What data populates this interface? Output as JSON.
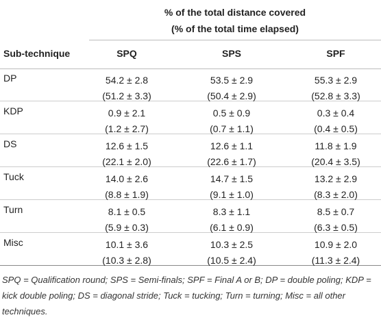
{
  "table": {
    "header": {
      "group": [
        "% of the total distance covered",
        "(% of the total time elapsed)"
      ],
      "columns": [
        "Sub-technique",
        "SPQ",
        "SPS",
        "SPF"
      ]
    },
    "rows": [
      {
        "label": "DP",
        "cells": [
          [
            "54.2 ± 2.8",
            "(51.2 ± 3.3)"
          ],
          [
            "53.5 ± 2.9",
            "(50.4 ± 2.9)"
          ],
          [
            "55.3 ± 2.9",
            "(52.8 ± 3.3)"
          ]
        ]
      },
      {
        "label": "KDP",
        "cells": [
          [
            "0.9 ± 2.1",
            "(1.2 ± 2.7)"
          ],
          [
            "0.5 ± 0.9",
            "(0.7 ± 1.1)"
          ],
          [
            "0.3 ± 0.4",
            "(0.4 ± 0.5)"
          ]
        ]
      },
      {
        "label": "DS",
        "cells": [
          [
            "12.6 ± 1.5",
            "(22.1 ± 2.0)"
          ],
          [
            "12.6 ± 1.1",
            "(22.6 ± 1.7)"
          ],
          [
            "11.8 ± 1.9",
            "(20.4 ± 3.5)"
          ]
        ]
      },
      {
        "label": "Tuck",
        "cells": [
          [
            "14.0 ± 2.6",
            "(8.8 ± 1.9)"
          ],
          [
            "14.7 ± 1.5",
            "(9.1 ± 1.0)"
          ],
          [
            "13.2 ± 2.9",
            "(8.3 ± 2.0)"
          ]
        ]
      },
      {
        "label": "Turn",
        "cells": [
          [
            "8.1 ± 0.5",
            "(5.9 ± 0.3)"
          ],
          [
            "8.3 ± 1.1",
            "(6.1 ± 0.9)"
          ],
          [
            "8.5 ± 0.7",
            "(6.3 ± 0.5)"
          ]
        ]
      },
      {
        "label": "Misc",
        "cells": [
          [
            "10.1 ± 3.6",
            "(10.3 ± 2.8)"
          ],
          [
            "10.3 ± 2.5",
            "(10.5 ± 2.4)"
          ],
          [
            "10.9 ± 2.0",
            "(11.3 ± 2.4)"
          ]
        ]
      }
    ]
  },
  "footnote": "SPQ = Qualification round; SPS = Semi-finals; SPF = Final A or B; DP = double poling; KDP = kick double poling; DS = diagonal stride; Tuck = tucking; Turn = turning; Misc = all other techniques."
}
